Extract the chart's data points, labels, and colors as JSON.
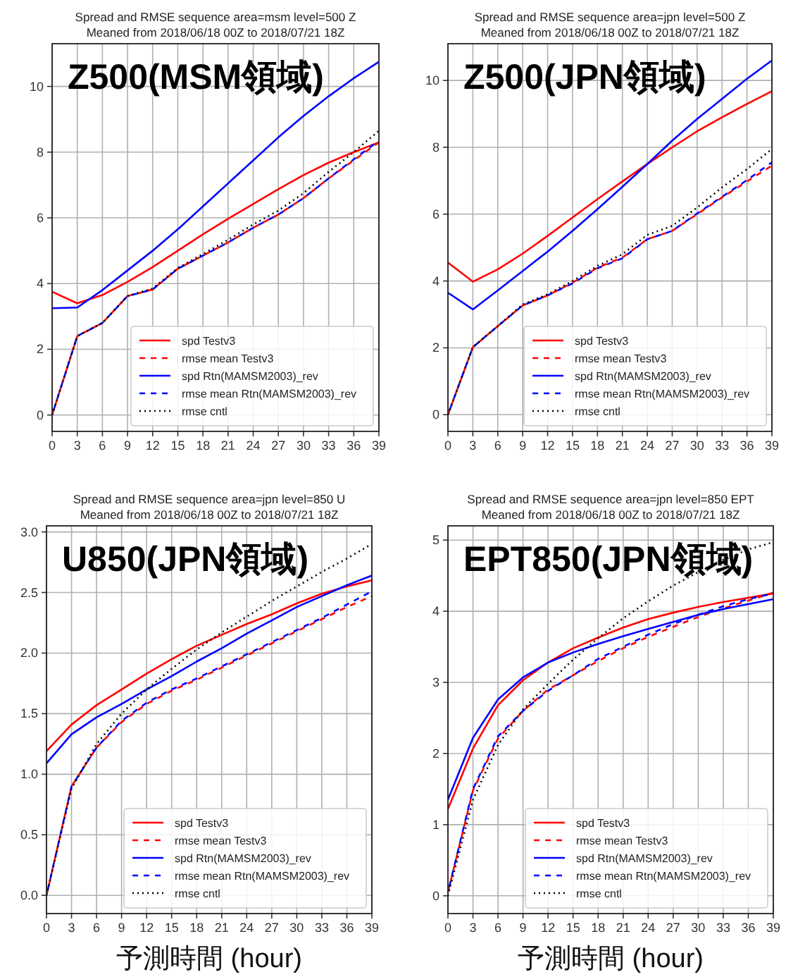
{
  "chart_data": [
    {
      "type": "line",
      "title": "Spread and RMSE sequence area=msm level=500 Z",
      "subtitle": "Meaned from 2018/06/18 00Z to 2018/07/21 18Z",
      "annotations": [
        "Z500(MSM領域)"
      ],
      "x": [
        0,
        3,
        6,
        9,
        12,
        15,
        18,
        21,
        24,
        27,
        30,
        33,
        36,
        39
      ],
      "xlim": [
        0,
        39
      ],
      "xticks": [
        0,
        3,
        6,
        9,
        12,
        15,
        18,
        21,
        24,
        27,
        30,
        33,
        36,
        39
      ],
      "ylim": [
        -0.5,
        11.3
      ],
      "yticks": [
        0,
        2,
        4,
        6,
        8,
        10
      ],
      "grid": true,
      "legend": "bottom right",
      "series": [
        {
          "name": "spd Testv3",
          "color": "#ff0000",
          "line_style": "solid",
          "values": [
            3.75,
            3.4,
            3.65,
            4.05,
            4.5,
            5.0,
            5.5,
            5.97,
            6.42,
            6.87,
            7.3,
            7.68,
            8.0,
            8.3
          ]
        },
        {
          "name": "rmse mean Testv3",
          "color": "#ff0000",
          "line_style": "dashed",
          "values": [
            0,
            2.4,
            2.8,
            3.62,
            3.82,
            4.45,
            4.85,
            5.25,
            5.7,
            6.1,
            6.6,
            7.2,
            7.75,
            8.3
          ]
        },
        {
          "name": "spd Rtn(MAMSM2003)_rev",
          "color": "#0000ff",
          "line_style": "solid",
          "values": [
            3.25,
            3.27,
            3.8,
            4.4,
            5.0,
            5.65,
            6.35,
            7.05,
            7.75,
            8.45,
            9.1,
            9.7,
            10.25,
            10.75
          ]
        },
        {
          "name": "rmse mean Rtn(MAMSM2003)_rev",
          "color": "#0000ff",
          "line_style": "dashed",
          "values": [
            0,
            2.4,
            2.8,
            3.62,
            3.82,
            4.45,
            4.85,
            5.25,
            5.7,
            6.1,
            6.6,
            7.2,
            7.78,
            8.35
          ]
        },
        {
          "name": "rmse cntl",
          "color": "#000000",
          "line_style": "dotted",
          "values": [
            0,
            2.4,
            2.8,
            3.62,
            3.85,
            4.47,
            4.9,
            5.33,
            5.8,
            6.22,
            6.75,
            7.4,
            8.0,
            8.65
          ]
        }
      ]
    },
    {
      "type": "line",
      "title": "Spread and RMSE sequence area=jpn level=500 Z",
      "subtitle": "Meaned from 2018/06/18 00Z to 2018/07/21 18Z",
      "annotations": [
        "Z500(JPN領域)"
      ],
      "x": [
        0,
        3,
        6,
        9,
        12,
        15,
        18,
        21,
        24,
        27,
        30,
        33,
        36,
        39
      ],
      "xlim": [
        0,
        39
      ],
      "xticks": [
        0,
        3,
        6,
        9,
        12,
        15,
        18,
        21,
        24,
        27,
        30,
        33,
        36,
        39
      ],
      "ylim": [
        -0.5,
        11.1
      ],
      "yticks": [
        0,
        2,
        4,
        6,
        8,
        10
      ],
      "grid": true,
      "legend": "bottom right",
      "series": [
        {
          "name": "spd Testv3",
          "color": "#ff0000",
          "line_style": "solid",
          "values": [
            4.55,
            3.98,
            4.35,
            4.82,
            5.35,
            5.9,
            6.45,
            6.98,
            7.5,
            8.0,
            8.48,
            8.9,
            9.3,
            9.68
          ]
        },
        {
          "name": "rmse mean Testv3",
          "color": "#ff0000",
          "line_style": "dashed",
          "values": [
            0,
            2.02,
            2.65,
            3.27,
            3.57,
            3.95,
            4.4,
            4.7,
            5.25,
            5.5,
            6.0,
            6.5,
            6.98,
            7.45
          ]
        },
        {
          "name": "spd Rtn(MAMSM2003)_rev",
          "color": "#0000ff",
          "line_style": "solid",
          "values": [
            3.65,
            3.15,
            3.72,
            4.3,
            4.88,
            5.5,
            6.15,
            6.82,
            7.5,
            8.2,
            8.85,
            9.45,
            10.05,
            10.6
          ]
        },
        {
          "name": "rmse mean Rtn(MAMSM2003)_rev",
          "color": "#0000ff",
          "line_style": "dashed",
          "values": [
            0,
            2.02,
            2.65,
            3.27,
            3.57,
            3.93,
            4.38,
            4.68,
            5.25,
            5.5,
            6.02,
            6.52,
            7.02,
            7.55
          ]
        },
        {
          "name": "rmse cntl",
          "color": "#000000",
          "line_style": "dotted",
          "values": [
            0,
            2.02,
            2.65,
            3.3,
            3.6,
            4.0,
            4.45,
            4.8,
            5.38,
            5.65,
            6.2,
            6.8,
            7.35,
            7.95
          ]
        }
      ]
    },
    {
      "type": "line",
      "title": "Spread and RMSE sequence area=jpn level=850 U",
      "subtitle": "Meaned from 2018/06/18 00Z to 2018/07/21 18Z",
      "annotations": [
        "U850(JPN領域)"
      ],
      "xlabel": "予測時間 (hour)",
      "x": [
        0,
        3,
        6,
        9,
        12,
        15,
        18,
        21,
        24,
        27,
        30,
        33,
        36,
        39
      ],
      "xlim": [
        0,
        39
      ],
      "xticks": [
        0,
        3,
        6,
        9,
        12,
        15,
        18,
        21,
        24,
        27,
        30,
        33,
        36,
        39
      ],
      "ylim": [
        -0.15,
        3.05
      ],
      "yticks": [
        {
          "value": 0,
          "label": "0.0"
        },
        0.5,
        {
          "value": 1,
          "label": "1.0"
        },
        1.5,
        {
          "value": 2,
          "label": "2.0"
        },
        2.5,
        {
          "value": 3,
          "label": "3.0"
        }
      ],
      "grid": true,
      "legend": "bottom right",
      "series": [
        {
          "name": "spd Testv3",
          "color": "#ff0000",
          "line_style": "solid",
          "values": [
            1.19,
            1.41,
            1.57,
            1.7,
            1.83,
            1.95,
            2.06,
            2.15,
            2.24,
            2.32,
            2.41,
            2.49,
            2.55,
            2.6
          ]
        },
        {
          "name": "rmse mean Testv3",
          "color": "#ff0000",
          "line_style": "dashed",
          "values": [
            0,
            0.9,
            1.22,
            1.43,
            1.58,
            1.69,
            1.78,
            1.88,
            1.98,
            2.08,
            2.18,
            2.28,
            2.38,
            2.47
          ]
        },
        {
          "name": "spd Rtn(MAMSM2003)_rev",
          "color": "#0000ff",
          "line_style": "solid",
          "values": [
            1.09,
            1.33,
            1.47,
            1.58,
            1.7,
            1.81,
            1.93,
            2.04,
            2.16,
            2.27,
            2.38,
            2.47,
            2.56,
            2.64
          ]
        },
        {
          "name": "rmse mean Rtn(MAMSM2003)_rev",
          "color": "#0000ff",
          "line_style": "dashed",
          "values": [
            0,
            0.9,
            1.22,
            1.44,
            1.59,
            1.7,
            1.79,
            1.89,
            1.99,
            2.09,
            2.19,
            2.29,
            2.4,
            2.51
          ]
        },
        {
          "name": "rmse cntl",
          "color": "#000000",
          "line_style": "dotted",
          "values": [
            0,
            0.88,
            1.25,
            1.5,
            1.7,
            1.87,
            2.03,
            2.17,
            2.3,
            2.43,
            2.55,
            2.67,
            2.78,
            2.9
          ]
        }
      ]
    },
    {
      "type": "line",
      "title": "Spread and RMSE sequence area=jpn level=850 EPT",
      "subtitle": "Meaned from 2018/06/18 00Z to 2018/07/21 18Z",
      "annotations": [
        "EPT850(JPN領域)"
      ],
      "xlabel": "予測時間 (hour)",
      "x": [
        0,
        3,
        6,
        9,
        12,
        15,
        18,
        21,
        24,
        27,
        30,
        33,
        36,
        39
      ],
      "xlim": [
        0,
        39
      ],
      "xticks": [
        0,
        3,
        6,
        9,
        12,
        15,
        18,
        21,
        24,
        27,
        30,
        33,
        36,
        39
      ],
      "ylim": [
        -0.25,
        5.2
      ],
      "yticks": [
        0,
        1,
        2,
        3,
        4,
        5
      ],
      "grid": true,
      "legend": "bottom right",
      "series": [
        {
          "name": "spd Testv3",
          "color": "#ff0000",
          "line_style": "solid",
          "values": [
            1.22,
            2.07,
            2.68,
            3.03,
            3.28,
            3.48,
            3.63,
            3.77,
            3.89,
            3.98,
            4.06,
            4.13,
            4.19,
            4.25
          ]
        },
        {
          "name": "rmse mean Testv3",
          "color": "#ff0000",
          "line_style": "dashed",
          "values": [
            0.05,
            1.48,
            2.21,
            2.6,
            2.9,
            3.1,
            3.3,
            3.48,
            3.64,
            3.78,
            3.92,
            4.04,
            4.15,
            4.26
          ]
        },
        {
          "name": "spd Rtn(MAMSM2003)_rev",
          "color": "#0000ff",
          "line_style": "solid",
          "values": [
            1.35,
            2.22,
            2.76,
            3.07,
            3.28,
            3.42,
            3.54,
            3.65,
            3.75,
            3.85,
            3.95,
            4.03,
            4.1,
            4.17
          ]
        },
        {
          "name": "rmse mean Rtn(MAMSM2003)_rev",
          "color": "#0000ff",
          "line_style": "dashed",
          "values": [
            0.05,
            1.5,
            2.24,
            2.6,
            2.88,
            3.1,
            3.33,
            3.5,
            3.67,
            3.82,
            3.95,
            4.07,
            4.17,
            4.25
          ]
        },
        {
          "name": "rmse cntl",
          "color": "#000000",
          "line_style": "dotted",
          "values": [
            0,
            1.35,
            2.12,
            2.62,
            2.98,
            3.32,
            3.62,
            3.9,
            4.14,
            4.36,
            4.55,
            4.72,
            4.87,
            4.97
          ]
        }
      ]
    }
  ]
}
